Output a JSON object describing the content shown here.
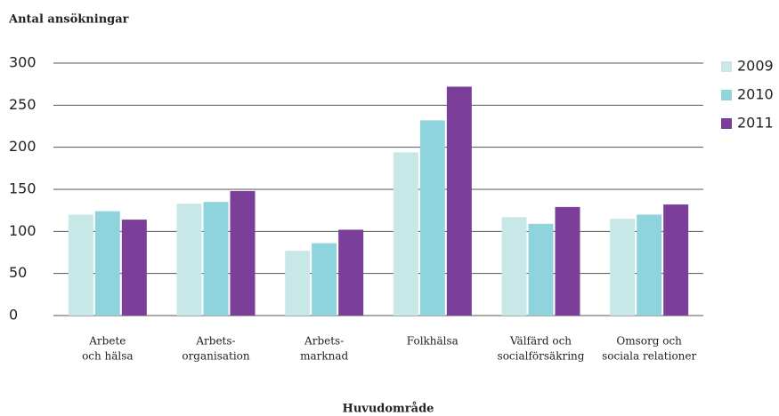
{
  "chart_data": {
    "type": "bar",
    "ylabel": "Antal ansökningar",
    "xlabel": "Huvudområde",
    "categories": [
      [
        "Arbete",
        "och hälsa"
      ],
      [
        "Arbets-",
        "organisation"
      ],
      [
        "Arbets-",
        "marknad"
      ],
      [
        "Folkhälsa"
      ],
      [
        "Välfärd och",
        "socialförsäkring"
      ],
      [
        "Omsorg och",
        "sociala relationer"
      ]
    ],
    "series": [
      {
        "name": "2009",
        "color": "#c8e8e8",
        "values": [
          120,
          133,
          77,
          194,
          117,
          115
        ]
      },
      {
        "name": "2010",
        "color": "#8fd4dc",
        "values": [
          124,
          135,
          86,
          232,
          109,
          120
        ]
      },
      {
        "name": "2011",
        "color": "#7b3f9a",
        "values": [
          114,
          148,
          102,
          272,
          129,
          132
        ]
      }
    ],
    "ylim": [
      0,
      300
    ],
    "yticks": [
      0,
      50,
      100,
      150,
      200,
      250,
      300
    ],
    "grid": true,
    "legend": "right"
  }
}
